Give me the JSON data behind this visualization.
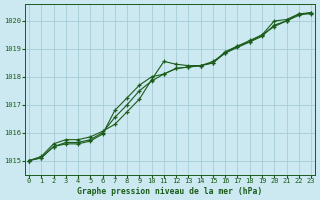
{
  "title": "Graphe pression niveau de la mer (hPa)",
  "background_color": "#cce8f0",
  "plot_bg_color": "#cce8f0",
  "grid_color": "#a8cdd8",
  "line_color": "#1a5c1a",
  "marker_color": "#1a5c1a",
  "xlim": [
    -0.3,
    23.3
  ],
  "ylim": [
    1014.5,
    1020.6
  ],
  "yticks": [
    1015,
    1016,
    1017,
    1018,
    1019,
    1020
  ],
  "xticks": [
    0,
    1,
    2,
    3,
    4,
    5,
    6,
    7,
    8,
    9,
    10,
    11,
    12,
    13,
    14,
    15,
    16,
    17,
    18,
    19,
    20,
    21,
    22,
    23
  ],
  "series1_x": [
    0,
    1,
    2,
    3,
    4,
    5,
    6,
    7,
    8,
    9,
    10,
    11,
    12,
    13,
    14,
    15,
    16,
    17,
    18,
    19,
    20,
    21,
    22,
    23
  ],
  "series1_y": [
    1015.0,
    1015.15,
    1015.6,
    1015.75,
    1015.75,
    1015.85,
    1016.05,
    1016.3,
    1016.75,
    1017.2,
    1017.9,
    1018.55,
    1018.45,
    1018.4,
    1018.4,
    1018.5,
    1018.9,
    1019.1,
    1019.3,
    1019.5,
    1020.0,
    1020.05,
    1020.25,
    1020.3
  ],
  "series2_x": [
    0,
    1,
    2,
    3,
    4,
    5,
    6,
    7,
    8,
    9,
    10,
    11,
    12,
    13,
    14,
    15,
    16,
    17,
    18,
    19,
    20,
    21,
    22,
    23
  ],
  "series2_y": [
    1015.0,
    1015.1,
    1015.5,
    1015.65,
    1015.65,
    1015.75,
    1016.0,
    1016.55,
    1017.0,
    1017.5,
    1017.85,
    1018.1,
    1018.3,
    1018.35,
    1018.4,
    1018.55,
    1018.85,
    1019.1,
    1019.25,
    1019.5,
    1019.8,
    1020.0,
    1020.2,
    1020.3
  ],
  "series3_x": [
    0,
    1,
    2,
    3,
    4,
    5,
    6,
    7,
    8,
    9,
    10,
    11,
    12,
    13,
    14,
    15,
    16,
    17,
    18,
    19,
    20,
    21,
    22,
    23
  ],
  "series3_y": [
    1015.0,
    1015.1,
    1015.5,
    1015.6,
    1015.6,
    1015.7,
    1015.95,
    1016.8,
    1017.25,
    1017.7,
    1018.0,
    1018.1,
    1018.3,
    1018.35,
    1018.4,
    1018.5,
    1018.85,
    1019.05,
    1019.25,
    1019.45,
    1019.85,
    1020.0,
    1020.25,
    1020.25
  ]
}
